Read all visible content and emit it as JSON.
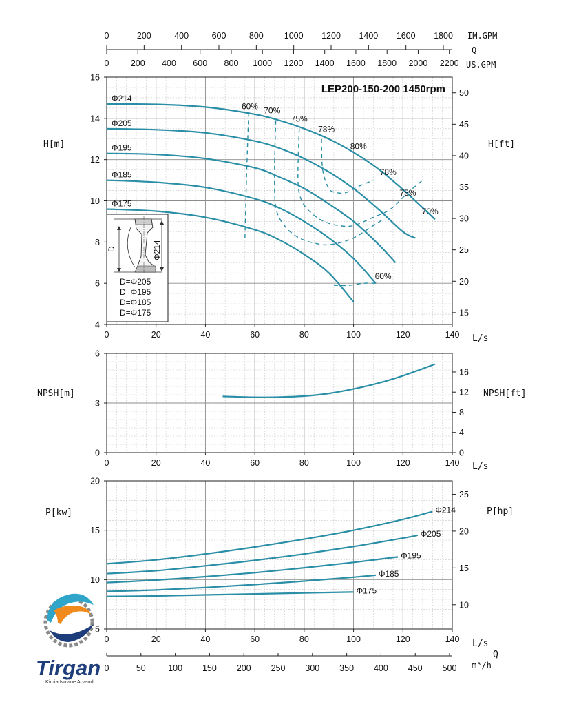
{
  "chart_data": [
    {
      "type": "line",
      "title": "LEP200-150-200 1450rpm",
      "xlabel": "L/s",
      "ylabel": "H[m]",
      "ylabel_right": "H[ft]",
      "xlim": [
        0,
        140
      ],
      "ylim": [
        4,
        16
      ],
      "x_ticks": [
        "0",
        "20",
        "40",
        "60",
        "80",
        "100",
        "120",
        "140"
      ],
      "y_ticks": [
        "4",
        "6",
        "8",
        "10",
        "12",
        "14",
        "16"
      ],
      "y_right_ticks": [
        "15",
        "20",
        "25",
        "30",
        "35",
        "40",
        "45",
        "50"
      ],
      "top_axes": [
        {
          "label": "IM.GPM",
          "ticks": [
            "0",
            "200",
            "400",
            "600",
            "800",
            "1000",
            "1200",
            "1400",
            "1600",
            "1800"
          ]
        },
        {
          "label": "Q",
          "ticks": []
        },
        {
          "label": "US.GPM",
          "ticks": [
            "0",
            "200",
            "400",
            "600",
            "800",
            "1000",
            "1200",
            "1400",
            "1600",
            "1800",
            "2000",
            "2200"
          ]
        }
      ],
      "series": [
        {
          "name": "Φ214",
          "x": [
            0,
            20,
            40,
            60,
            70,
            80,
            90,
            100,
            110,
            120,
            125,
            133
          ],
          "y": [
            14.7,
            14.68,
            14.55,
            14.2,
            13.9,
            13.5,
            13.0,
            12.35,
            11.55,
            10.55,
            10.0,
            9.1
          ]
        },
        {
          "name": "Φ205",
          "x": [
            0,
            20,
            40,
            60,
            70,
            80,
            90,
            100,
            110,
            120,
            125
          ],
          "y": [
            13.5,
            13.45,
            13.3,
            12.9,
            12.55,
            12.05,
            11.4,
            10.6,
            9.6,
            8.5,
            8.2
          ]
        },
        {
          "name": "Φ195",
          "x": [
            0,
            20,
            40,
            60,
            70,
            80,
            90,
            100,
            110,
            117
          ],
          "y": [
            12.3,
            12.25,
            12.05,
            11.6,
            11.15,
            10.6,
            9.85,
            9.0,
            7.9,
            7.0
          ]
        },
        {
          "name": "Φ185",
          "x": [
            0,
            20,
            40,
            60,
            70,
            80,
            90,
            100,
            109
          ],
          "y": [
            11.0,
            10.9,
            10.65,
            10.1,
            9.65,
            9.0,
            8.2,
            7.2,
            6.0
          ]
        },
        {
          "name": "Φ175",
          "x": [
            0,
            20,
            40,
            60,
            70,
            80,
            90,
            100
          ],
          "y": [
            9.6,
            9.5,
            9.2,
            8.6,
            8.1,
            7.4,
            6.5,
            5.1
          ]
        }
      ],
      "efficiency_contours": [
        {
          "label": "60%",
          "x": [
            56,
            56.5,
            57,
            57.5
          ],
          "y": [
            8.2,
            10.5,
            12.5,
            14.2
          ]
        },
        {
          "label": "70%",
          "x": [
            68.5,
            68,
            68.5,
            72,
            78,
            86,
            92,
            100,
            108,
            112
          ],
          "y": [
            13.9,
            11.5,
            9.7,
            8.8,
            8.2,
            7.9,
            7.9,
            8.2,
            8.8,
            9.1
          ]
        },
        {
          "label": "75%",
          "x": [
            78,
            77.5,
            79,
            83,
            88,
            94,
            100,
            108,
            115,
            122,
            128
          ],
          "y": [
            13.5,
            11.0,
            10.0,
            9.4,
            9.0,
            8.8,
            8.8,
            9.2,
            9.6,
            10.4,
            11.0
          ]
        },
        {
          "label": "78%",
          "x": [
            87,
            87.5,
            90,
            93,
            97,
            102,
            108
          ],
          "y": [
            13.0,
            11.5,
            10.6,
            10.4,
            10.4,
            10.7,
            11.0
          ]
        },
        {
          "label": "80%",
          "x": [],
          "y": []
        },
        {
          "label": "60%",
          "x": [
            92,
            98,
            104,
            109
          ],
          "y": [
            5.9,
            5.9,
            6.0,
            6.0
          ]
        }
      ],
      "efficiency_labels": [
        "60%",
        "70%",
        "75%",
        "78%",
        "80%",
        "78%",
        "75%",
        "70%",
        "60%"
      ],
      "inset": {
        "dimension_labels": [
          "D",
          "Φ214"
        ],
        "lines": [
          "D=Φ205",
          "D=Φ195",
          "D=Φ185",
          "D=Φ175"
        ]
      }
    },
    {
      "type": "line",
      "xlabel": "L/s",
      "ylabel": "NPSH[m]",
      "ylabel_right": "NPSH[ft]",
      "xlim": [
        0,
        140
      ],
      "ylim": [
        0,
        6
      ],
      "x_ticks": [
        "0",
        "20",
        "40",
        "60",
        "80",
        "100",
        "120",
        "140"
      ],
      "y_ticks": [
        "0",
        "3",
        "6"
      ],
      "y_right_ticks": [
        "0",
        "4",
        "8",
        "12",
        "16"
      ],
      "series": [
        {
          "name": "",
          "x": [
            47,
            60,
            70,
            80,
            90,
            100,
            110,
            120,
            133
          ],
          "y": [
            3.4,
            3.35,
            3.36,
            3.42,
            3.58,
            3.85,
            4.2,
            4.65,
            5.35
          ]
        }
      ]
    },
    {
      "type": "line",
      "xlabel": "L/s",
      "ylabel": "P[kw]",
      "ylabel_right": "P[hp]",
      "xlim": [
        0,
        140
      ],
      "ylim": [
        5,
        20
      ],
      "x_ticks": [
        "0",
        "20",
        "40",
        "60",
        "80",
        "100",
        "120",
        "140"
      ],
      "y_ticks": [
        "5",
        "10",
        "15",
        "20"
      ],
      "y_right_ticks": [
        "10",
        "15",
        "20",
        "25"
      ],
      "bottom_axis": {
        "label_top": "Q",
        "label": "m³/h",
        "ticks": [
          "0",
          "50",
          "100",
          "150",
          "200",
          "250",
          "300",
          "350",
          "400",
          "450",
          "500"
        ]
      },
      "series": [
        {
          "name": "Φ214",
          "x": [
            0,
            20,
            40,
            60,
            80,
            100,
            120,
            132
          ],
          "y": [
            11.6,
            12.0,
            12.6,
            13.3,
            14.1,
            15.0,
            16.1,
            16.9
          ]
        },
        {
          "name": "Φ205",
          "x": [
            0,
            20,
            40,
            60,
            80,
            100,
            120,
            126
          ],
          "y": [
            10.6,
            10.9,
            11.4,
            11.95,
            12.6,
            13.35,
            14.2,
            14.5
          ]
        },
        {
          "name": "Φ195",
          "x": [
            0,
            20,
            40,
            60,
            80,
            100,
            118
          ],
          "y": [
            9.7,
            9.95,
            10.3,
            10.7,
            11.2,
            11.75,
            12.3
          ]
        },
        {
          "name": "Φ185",
          "x": [
            0,
            20,
            40,
            60,
            80,
            100,
            109
          ],
          "y": [
            8.8,
            8.95,
            9.2,
            9.5,
            9.85,
            10.25,
            10.45
          ]
        },
        {
          "name": "Φ175",
          "x": [
            0,
            20,
            40,
            60,
            80,
            100
          ],
          "y": [
            8.3,
            8.35,
            8.45,
            8.55,
            8.65,
            8.75
          ]
        }
      ]
    }
  ],
  "logo": {
    "name": "Tirgan",
    "tagline": "Kimia Novine Arvand",
    "colors": {
      "orange": "#f08a1c",
      "navy": "#1e3d7b",
      "teal": "#2fa6c9",
      "gray": "#8a8a8a"
    }
  },
  "colors": {
    "curve": "#2a8fa6"
  }
}
